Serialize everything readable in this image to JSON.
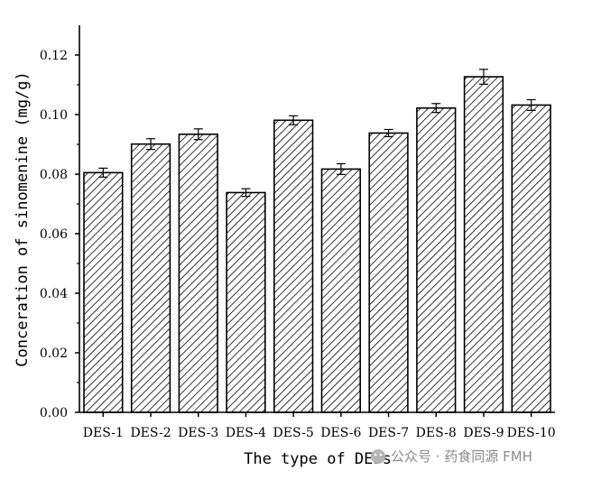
{
  "chart_data": {
    "type": "bar",
    "categories": [
      "DES-1",
      "DES-2",
      "DES-3",
      "DES-4",
      "DES-5",
      "DES-6",
      "DES-7",
      "DES-8",
      "DES-9",
      "DES-10"
    ],
    "values": [
      0.0805,
      0.0901,
      0.0934,
      0.0738,
      0.0981,
      0.0817,
      0.0938,
      0.1022,
      0.1127,
      0.1032
    ],
    "errors": [
      0.0015,
      0.0018,
      0.0018,
      0.0013,
      0.0015,
      0.0018,
      0.0012,
      0.0015,
      0.0025,
      0.0018
    ],
    "xlabel": "The type of  DESs",
    "ylabel": "Conceration of sinomenine (mg/g)",
    "ylim": [
      0,
      0.13
    ],
    "yticks": [
      0.0,
      0.02,
      0.04,
      0.06,
      0.08,
      0.1,
      0.12
    ],
    "ytick_labels": [
      "0.00",
      "0.02",
      "0.04",
      "0.06",
      "0.08",
      "0.10",
      "0.12"
    ],
    "bar_fill": "diagonal-hatch",
    "bar_color": "#000000",
    "grid": false,
    "legend": "none"
  },
  "watermark": {
    "text": "公众号 · 药食同源 FMH",
    "icon": "wechat-icon"
  }
}
